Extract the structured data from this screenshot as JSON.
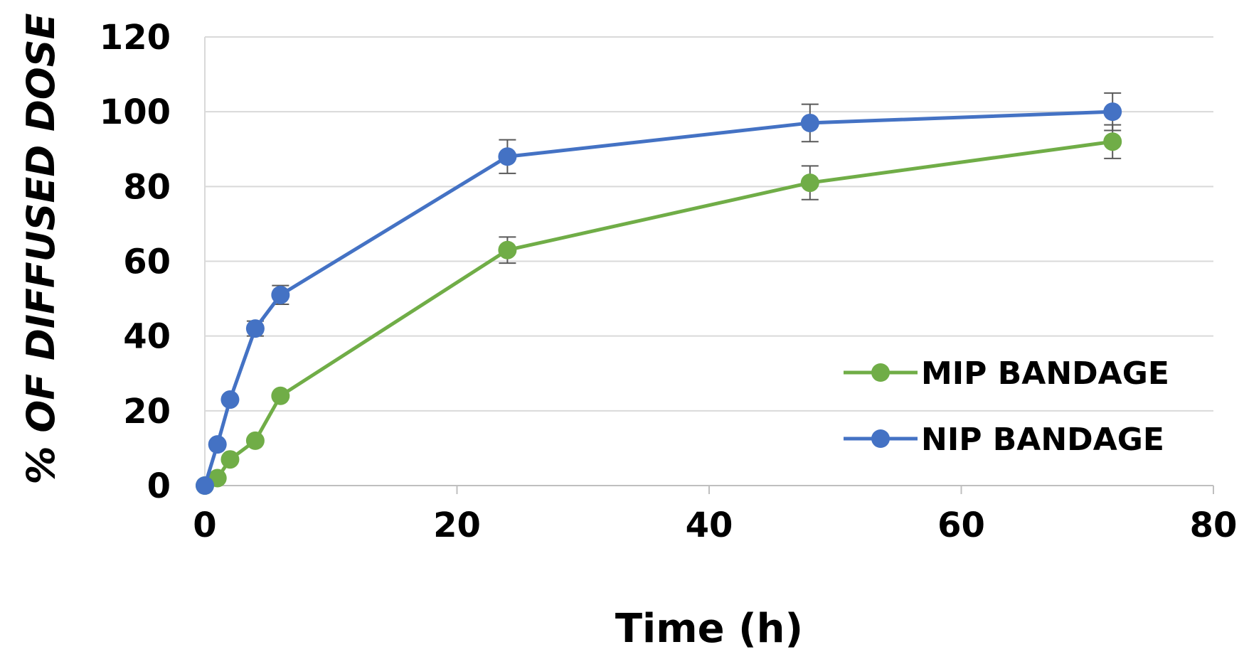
{
  "chart_data": {
    "type": "line",
    "title": "",
    "xlabel": "Time (h)",
    "ylabel": "% OF DIFFUSED DOSE",
    "xlim": [
      0,
      80
    ],
    "ylim": [
      0,
      120
    ],
    "xticks": [
      0,
      20,
      40,
      60,
      80
    ],
    "yticks": [
      0,
      20,
      40,
      60,
      80,
      100,
      120
    ],
    "x_tick_labels": [
      "0",
      "20",
      "40",
      "60",
      "80"
    ],
    "y_tick_labels": [
      "0",
      "20",
      "40",
      "60",
      "80",
      "100",
      "120"
    ],
    "grid": "horizontal",
    "legend_position": "right-center",
    "series": [
      {
        "name": "MIP BANDAGE",
        "color": "#70ad47",
        "x": [
          0,
          1,
          2,
          4,
          6,
          24,
          48,
          72
        ],
        "y": [
          0,
          2,
          7,
          12,
          24,
          63,
          81,
          92
        ],
        "error": [
          0,
          0,
          0,
          0,
          0,
          3.5,
          4.5,
          4.5
        ]
      },
      {
        "name": "NIP BANDAGE",
        "color": "#4472c4",
        "x": [
          0,
          1,
          2,
          4,
          6,
          24,
          48,
          72
        ],
        "y": [
          0,
          11,
          23,
          42,
          51,
          88,
          97,
          100
        ],
        "error": [
          0,
          0,
          0,
          2,
          2.5,
          4.5,
          5,
          5
        ]
      }
    ]
  }
}
